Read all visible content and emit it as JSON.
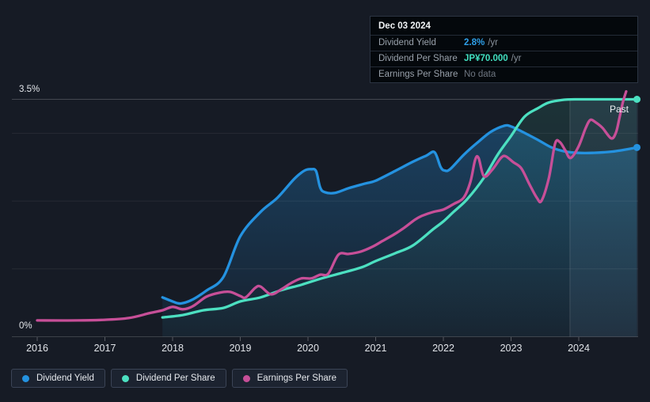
{
  "tooltip": {
    "date": "Dec 03 2024",
    "rows": [
      {
        "label": "Dividend Yield",
        "value": "2.8%",
        "unit": "/yr",
        "style": "blue"
      },
      {
        "label": "Dividend Per Share",
        "value": "JP¥70.000",
        "unit": "/yr",
        "style": "teal"
      },
      {
        "label": "Earnings Per Share",
        "value": "No data",
        "unit": "",
        "style": "muted"
      }
    ]
  },
  "axis": {
    "y_top_label": "3.5%",
    "y_bottom_label": "0%",
    "x_labels": [
      "2016",
      "2017",
      "2018",
      "2019",
      "2020",
      "2021",
      "2022",
      "2023",
      "2024"
    ]
  },
  "legend": [
    {
      "label": "Dividend Yield",
      "color": "#2492e0"
    },
    {
      "label": "Dividend Per Share",
      "color": "#4ce0c1"
    },
    {
      "label": "Earnings Per Share",
      "color": "#c74f98"
    }
  ],
  "colors": {
    "background": "#161b25",
    "blue": "#2492e0",
    "teal": "#4ce0c1",
    "pink": "#c74f98",
    "value_blue": "#2e9fe8",
    "value_teal": "#41dfc0",
    "value_muted": "#6e7681"
  },
  "chart_data": {
    "type": "line",
    "x_axis": {
      "tick_labels": [
        "2016",
        "2017",
        "2018",
        "2019",
        "2020",
        "2021",
        "2022",
        "2023",
        "2024"
      ],
      "range": [
        2016,
        2024.87
      ]
    },
    "y_axis_left": {
      "tick_labels": [
        "0%",
        "3.5%"
      ],
      "range_pct": [
        0,
        3.5
      ],
      "gridlines_pct": [
        1,
        2,
        3
      ]
    },
    "y_axis_right": {
      "shown": false,
      "unit": "JP¥",
      "value_at_top_gridline": 70
    },
    "past_region": {
      "label": "Past",
      "start": 2023.87,
      "end": 2024.87
    },
    "legend_position": "bottom-left",
    "series": [
      {
        "name": "Dividend Yield",
        "unit": "%",
        "scale": "percent",
        "color": "#2492e0",
        "fill": true,
        "end_dot": true,
        "points": [
          [
            2017.85,
            0.58
          ],
          [
            2018.0,
            0.52
          ],
          [
            2018.12,
            0.49
          ],
          [
            2018.3,
            0.55
          ],
          [
            2018.5,
            0.68
          ],
          [
            2018.75,
            0.88
          ],
          [
            2019.0,
            1.48
          ],
          [
            2019.3,
            1.84
          ],
          [
            2019.55,
            2.05
          ],
          [
            2019.8,
            2.33
          ],
          [
            2019.95,
            2.45
          ],
          [
            2020.05,
            2.47
          ],
          [
            2020.12,
            2.44
          ],
          [
            2020.18,
            2.2
          ],
          [
            2020.25,
            2.13
          ],
          [
            2020.4,
            2.12
          ],
          [
            2020.6,
            2.19
          ],
          [
            2020.85,
            2.26
          ],
          [
            2021.0,
            2.3
          ],
          [
            2021.3,
            2.45
          ],
          [
            2021.55,
            2.58
          ],
          [
            2021.75,
            2.67
          ],
          [
            2021.87,
            2.72
          ],
          [
            2021.96,
            2.5
          ],
          [
            2022.02,
            2.45
          ],
          [
            2022.1,
            2.47
          ],
          [
            2022.3,
            2.68
          ],
          [
            2022.5,
            2.86
          ],
          [
            2022.7,
            3.02
          ],
          [
            2022.9,
            3.11
          ],
          [
            2023.0,
            3.1
          ],
          [
            2023.15,
            3.03
          ],
          [
            2023.4,
            2.9
          ],
          [
            2023.6,
            2.79
          ],
          [
            2023.8,
            2.73
          ],
          [
            2024.0,
            2.71
          ],
          [
            2024.2,
            2.71
          ],
          [
            2024.5,
            2.73
          ],
          [
            2024.86,
            2.79
          ]
        ]
      },
      {
        "name": "Dividend Per Share",
        "unit": "JP¥",
        "scale": "share",
        "color": "#4ce0c1",
        "fill": true,
        "end_dot": true,
        "points": [
          [
            2017.85,
            5.7
          ],
          [
            2018.15,
            6.4
          ],
          [
            2018.45,
            7.8
          ],
          [
            2018.75,
            8.5
          ],
          [
            2019.0,
            10.4
          ],
          [
            2019.3,
            11.6
          ],
          [
            2019.6,
            13.7
          ],
          [
            2019.9,
            15.3
          ],
          [
            2020.2,
            17.2
          ],
          [
            2020.5,
            18.8
          ],
          [
            2020.8,
            20.5
          ],
          [
            2021.0,
            22.3
          ],
          [
            2021.3,
            24.7
          ],
          [
            2021.55,
            26.9
          ],
          [
            2021.85,
            31.7
          ],
          [
            2022.0,
            34.0
          ],
          [
            2022.15,
            36.8
          ],
          [
            2022.35,
            40.5
          ],
          [
            2022.6,
            46.9
          ],
          [
            2022.8,
            53.6
          ],
          [
            2023.0,
            59.2
          ],
          [
            2023.2,
            64.9
          ],
          [
            2023.4,
            67.4
          ],
          [
            2023.55,
            69.0
          ],
          [
            2023.75,
            69.8
          ],
          [
            2023.95,
            70.0
          ],
          [
            2024.4,
            70.0
          ],
          [
            2024.86,
            70.0
          ]
        ]
      },
      {
        "name": "Earnings Per Share",
        "unit": "JP¥",
        "scale": "share",
        "color": "#c74f98",
        "fill": false,
        "end_dot": false,
        "points": [
          [
            2016.0,
            4.8
          ],
          [
            2016.6,
            4.8
          ],
          [
            2017.0,
            5.0
          ],
          [
            2017.35,
            5.5
          ],
          [
            2017.65,
            6.9
          ],
          [
            2017.85,
            7.8
          ],
          [
            2018.0,
            8.8
          ],
          [
            2018.15,
            8.1
          ],
          [
            2018.3,
            9.0
          ],
          [
            2018.5,
            11.8
          ],
          [
            2018.7,
            13.0
          ],
          [
            2018.85,
            13.2
          ],
          [
            2019.0,
            12.0
          ],
          [
            2019.08,
            11.6
          ],
          [
            2019.22,
            14.4
          ],
          [
            2019.3,
            14.8
          ],
          [
            2019.45,
            12.5
          ],
          [
            2019.6,
            13.9
          ],
          [
            2019.75,
            15.8
          ],
          [
            2019.9,
            17.2
          ],
          [
            2020.05,
            17.2
          ],
          [
            2020.18,
            18.3
          ],
          [
            2020.3,
            18.6
          ],
          [
            2020.45,
            24.2
          ],
          [
            2020.6,
            24.4
          ],
          [
            2020.78,
            25.1
          ],
          [
            2020.95,
            26.5
          ],
          [
            2021.1,
            28.2
          ],
          [
            2021.3,
            30.5
          ],
          [
            2021.42,
            32.1
          ],
          [
            2021.58,
            34.5
          ],
          [
            2021.68,
            35.6
          ],
          [
            2021.85,
            36.8
          ],
          [
            2022.0,
            37.5
          ],
          [
            2022.15,
            39.1
          ],
          [
            2022.3,
            41.0
          ],
          [
            2022.4,
            45.7
          ],
          [
            2022.47,
            52.2
          ],
          [
            2022.52,
            52.7
          ],
          [
            2022.6,
            47.3
          ],
          [
            2022.72,
            49.2
          ],
          [
            2022.85,
            52.7
          ],
          [
            2022.92,
            53.2
          ],
          [
            2023.03,
            51.5
          ],
          [
            2023.15,
            49.7
          ],
          [
            2023.27,
            45.0
          ],
          [
            2023.38,
            41.0
          ],
          [
            2023.45,
            40.1
          ],
          [
            2023.56,
            46.9
          ],
          [
            2023.65,
            56.9
          ],
          [
            2023.72,
            57.4
          ],
          [
            2023.8,
            55.0
          ],
          [
            2023.88,
            52.7
          ],
          [
            2024.0,
            56.2
          ],
          [
            2024.1,
            61.4
          ],
          [
            2024.17,
            63.9
          ],
          [
            2024.25,
            63.2
          ],
          [
            2024.35,
            61.6
          ],
          [
            2024.48,
            58.5
          ],
          [
            2024.55,
            60.2
          ],
          [
            2024.6,
            64.4
          ],
          [
            2024.65,
            69.0
          ],
          [
            2024.7,
            72.3
          ]
        ]
      }
    ]
  }
}
